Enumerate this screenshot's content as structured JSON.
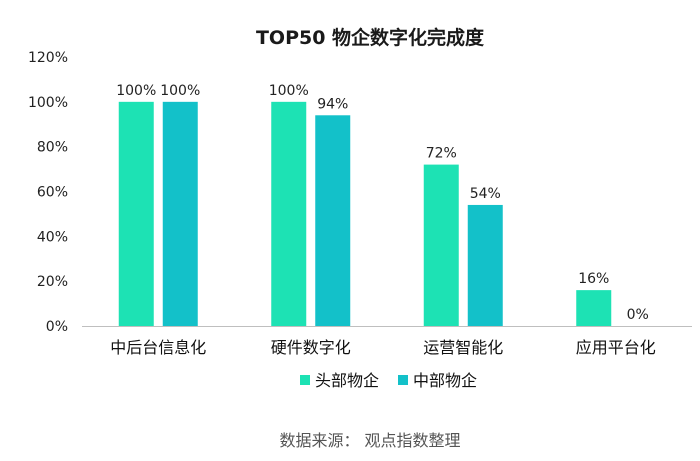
{
  "chart_data": {
    "type": "bar",
    "title": "TOP50 物企数字化完成度",
    "categories": [
      "中后台信息化",
      "硬件数字化",
      "运营智能化",
      "应用平台化"
    ],
    "series": [
      {
        "name": "头部物企",
        "values": [
          100,
          100,
          72,
          16
        ],
        "labels": [
          "100%",
          "100%",
          "72%",
          "16%"
        ],
        "color": "#1de2b4"
      },
      {
        "name": "中部物企",
        "values": [
          100,
          94,
          54,
          0
        ],
        "labels": [
          "100%",
          "94%",
          "54%",
          "0%"
        ],
        "color": "#13c1c9"
      }
    ],
    "yticks": [
      "0%",
      "20%",
      "40%",
      "60%",
      "80%",
      "100%",
      "120%"
    ],
    "ylim": [
      0,
      120
    ],
    "ylabel": "",
    "xlabel": "",
    "legend_position": "bottom",
    "grid": false
  },
  "source": "数据来源： 观点指数整理"
}
